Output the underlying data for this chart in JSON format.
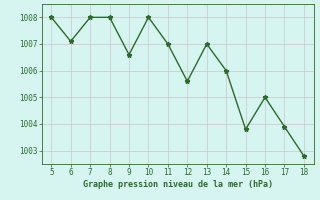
{
  "x": [
    5,
    6,
    7,
    8,
    9,
    10,
    11,
    12,
    13,
    14,
    15,
    16,
    17,
    18
  ],
  "y": [
    1008.0,
    1007.1,
    1008.0,
    1008.0,
    1006.6,
    1008.0,
    1007.0,
    1005.6,
    1007.0,
    1006.0,
    1003.8,
    1005.0,
    1003.9,
    1002.8
  ],
  "line_color": "#2d6b2d",
  "marker": "*",
  "marker_size": 3.5,
  "xlabel": "Graphe pression niveau de la mer (hPa)",
  "xlabel_color": "#2d6b2d",
  "background_color": "#d6f5f0",
  "grid_color": "#c8c8c8",
  "tick_color": "#2d6b2d",
  "ylim": [
    1002.5,
    1008.5
  ],
  "yticks": [
    1003,
    1004,
    1005,
    1006,
    1007,
    1008
  ],
  "xlim": [
    4.5,
    18.5
  ],
  "xticks": [
    5,
    6,
    7,
    8,
    9,
    10,
    11,
    12,
    13,
    14,
    15,
    16,
    17,
    18
  ],
  "spine_color": "#2d6b2d",
  "linewidth": 1.0,
  "tick_fontsize": 5.5,
  "xlabel_fontsize": 6.0
}
